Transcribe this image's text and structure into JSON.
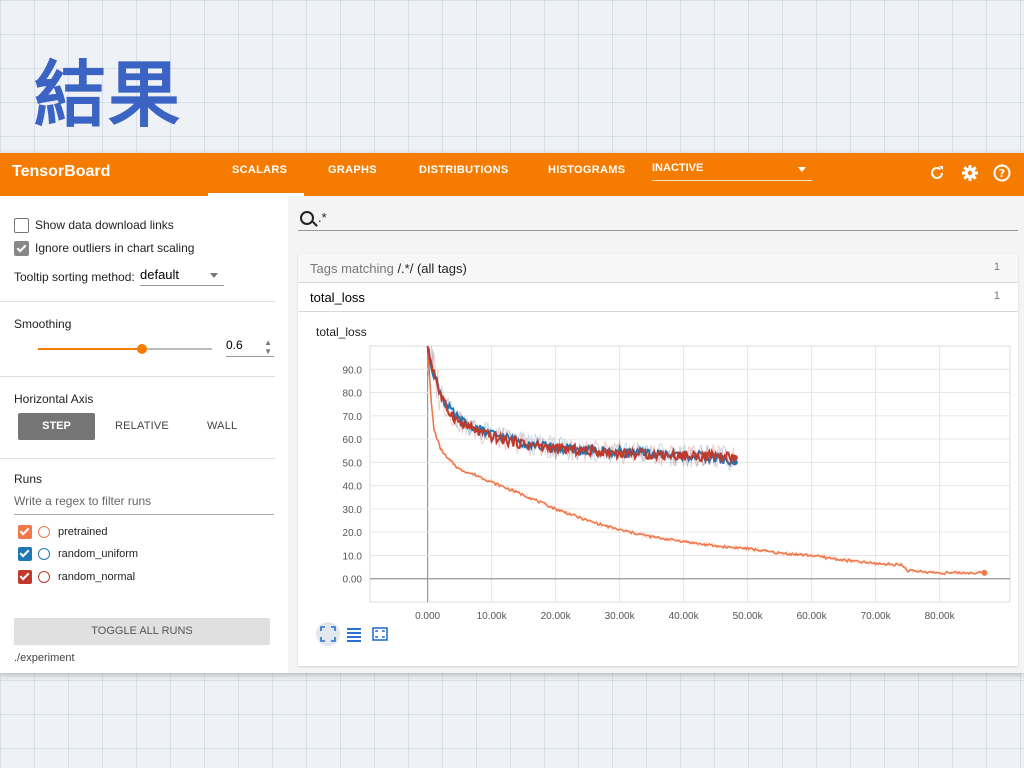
{
  "slide": {
    "title": "結果"
  },
  "app": {
    "brand": "TensorBoard",
    "tabs": [
      {
        "label": "SCALARS",
        "active": true
      },
      {
        "label": "GRAPHS"
      },
      {
        "label": "DISTRIBUTIONS"
      },
      {
        "label": "HISTOGRAMS"
      }
    ],
    "inactive_label": "INACTIVE",
    "icons": [
      "refresh-icon",
      "settings-icon",
      "help-icon"
    ],
    "accent": "#f57c00"
  },
  "sidebar": {
    "show_download_label": "Show data download links",
    "ignore_outliers_label": "Ignore outliers in chart scaling",
    "tooltip_label": "Tooltip sorting method:",
    "tooltip_value": "default",
    "smoothing_label": "Smoothing",
    "smoothing_value": "0.6",
    "smoothing_fraction": 0.6,
    "horizontal_axis_label": "Horizontal Axis",
    "axis_buttons": {
      "step": "STEP",
      "relative": "RELATIVE",
      "wall": "WALL"
    },
    "runs_label": "Runs",
    "regex_placeholder": "Write a regex to filter runs",
    "runs": [
      {
        "name": "pretrained",
        "color": "#f0784a"
      },
      {
        "name": "random_uniform",
        "color": "#1f77b4"
      },
      {
        "name": "random_normal",
        "color": "#c0392b"
      }
    ],
    "toggle_label": "TOGGLE ALL RUNS",
    "experiment_path": "./experiment"
  },
  "main": {
    "search_value": ".*",
    "tags_prefix": "Tags matching ",
    "tags_regex": "/.*/",
    "tags_suffix": " (all tags)",
    "tags_count": "1",
    "group_label": "total_loss",
    "group_count": "1"
  },
  "chart_data": {
    "type": "line",
    "title": "total_loss",
    "xlabel": "",
    "ylabel": "",
    "xlim": [
      -9000,
      91000
    ],
    "ylim": [
      -10,
      100
    ],
    "x_ticks": [
      "0.000",
      "10.00k",
      "20.00k",
      "30.00k",
      "40.00k",
      "50.00k",
      "60.00k",
      "70.00k",
      "80.00k"
    ],
    "y_ticks": [
      "90.0",
      "80.0",
      "70.0",
      "60.0",
      "50.0",
      "40.0",
      "30.0",
      "20.0",
      "10.0",
      "0.00"
    ],
    "grid": true,
    "series": [
      {
        "name": "pretrained",
        "color": "#f0784a",
        "x": [
          0,
          500,
          1000,
          2000,
          3000,
          5000,
          8000,
          10000,
          15000,
          20000,
          25000,
          30000,
          35000,
          40000,
          45000,
          50000,
          55000,
          60000,
          65000,
          70000,
          74000,
          75000,
          80000,
          87000
        ],
        "y": [
          100,
          78,
          64,
          56,
          52,
          47,
          44,
          41.5,
          36,
          30,
          25,
          21,
          18,
          16,
          14,
          13,
          11,
          10,
          8,
          6.5,
          6,
          3.5,
          2.5,
          2.5
        ]
      },
      {
        "name": "random_uniform",
        "color": "#1f77b4",
        "x": [
          0,
          1000,
          2000,
          3000,
          5000,
          8000,
          10000,
          13000,
          16000,
          20000,
          25000,
          30000,
          35000,
          40000,
          45000,
          48000
        ],
        "y": [
          98,
          88,
          80,
          74,
          68,
          64,
          62,
          60,
          58,
          56,
          55,
          54.5,
          53.5,
          53,
          52,
          50
        ]
      },
      {
        "name": "random_normal",
        "color": "#c0392b",
        "x": [
          0,
          1000,
          2000,
          3000,
          5000,
          8000,
          10000,
          13000,
          16000,
          20000,
          25000,
          30000,
          35000,
          40000,
          45000,
          48000
        ],
        "y": [
          99,
          89,
          79,
          73,
          67,
          63,
          61,
          59,
          57.5,
          56,
          55,
          54,
          53.5,
          53,
          52.5,
          52
        ]
      }
    ]
  }
}
